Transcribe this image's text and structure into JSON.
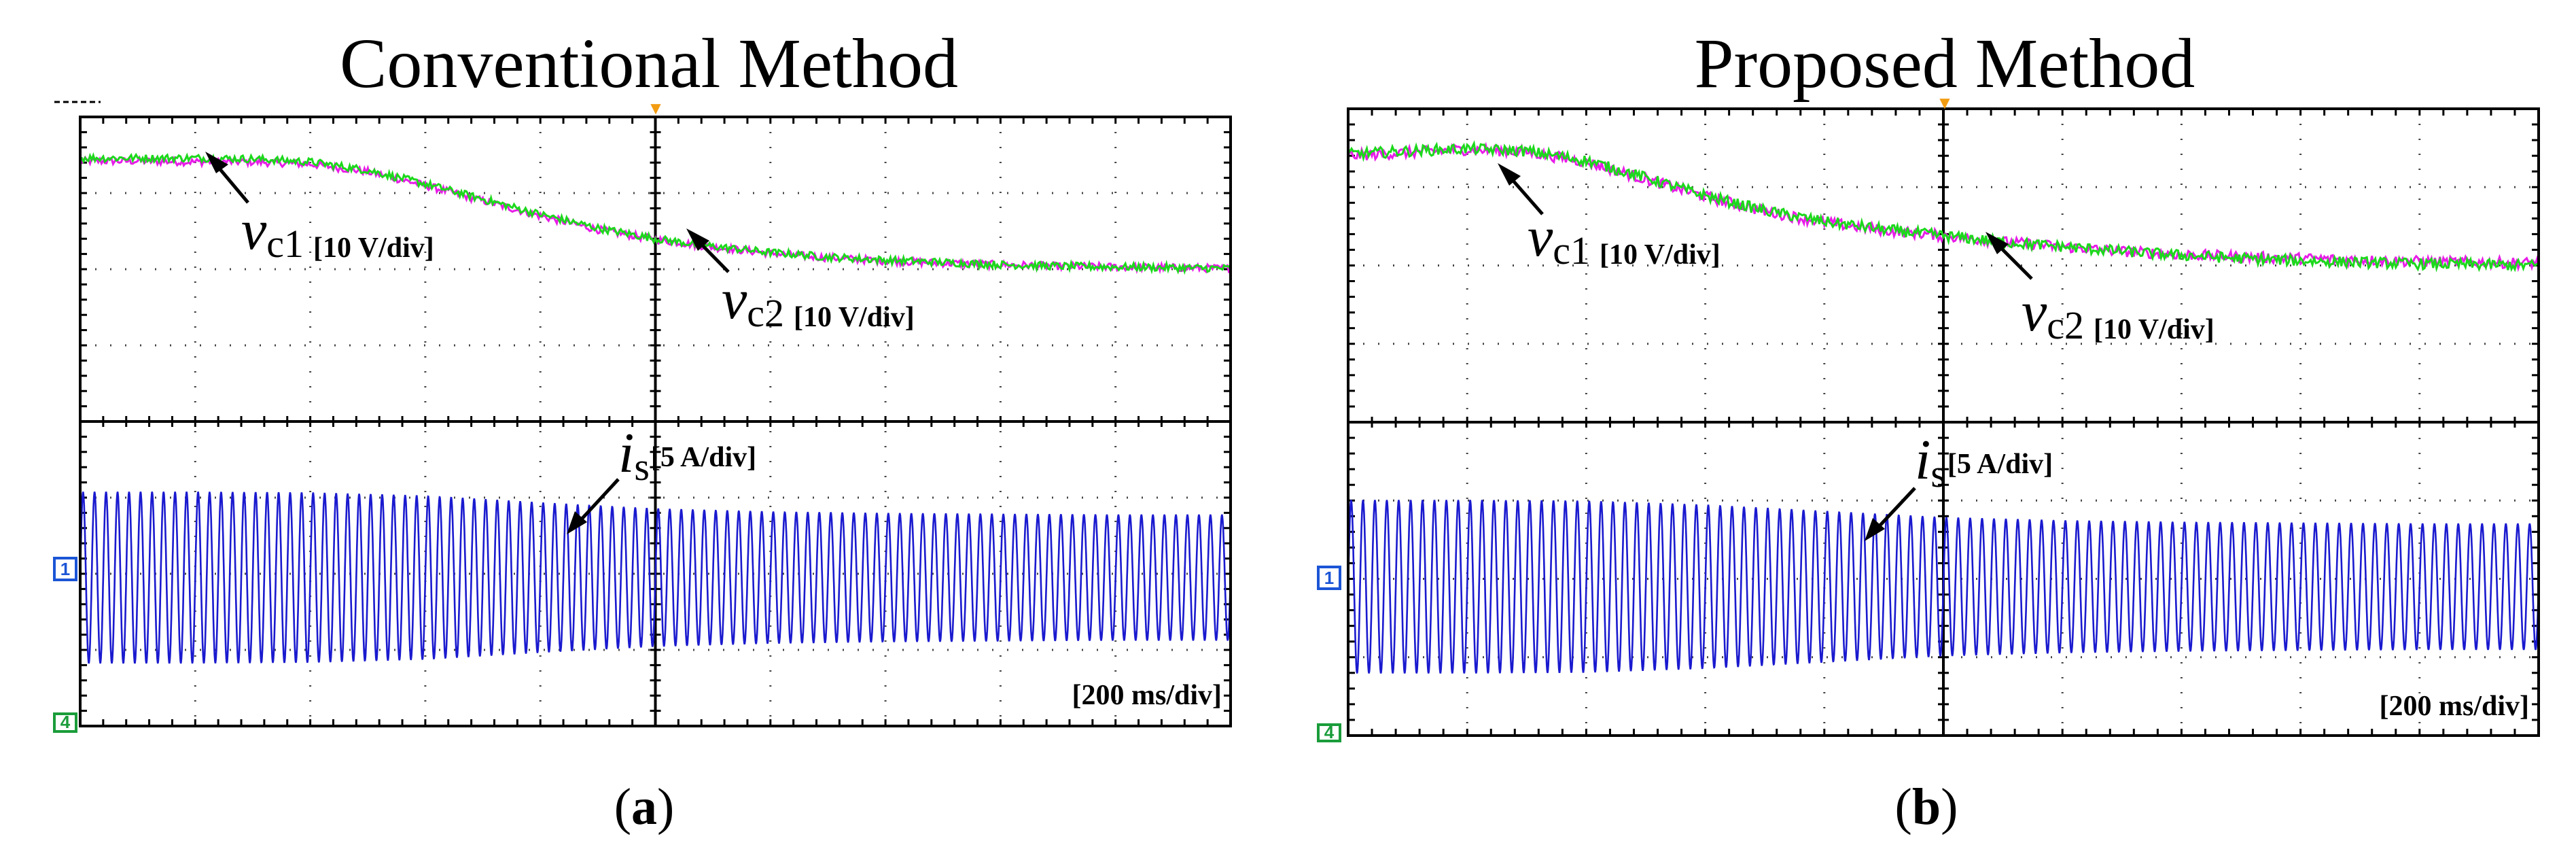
{
  "colors": {
    "vc1": "#e81ce8",
    "vc2": "#1cd81c",
    "is": "#1a1acf",
    "trigger": "#f29c12",
    "marker1": "#1b55d6",
    "marker4": "#1a9c3a"
  },
  "chart_data": [
    {
      "type": "line",
      "panel_label": "(a)",
      "panel_letter": "a",
      "title": "Conventional Method",
      "xlabel": "",
      "ylabel": "",
      "time_div_label": "[200 ms/div]",
      "x_divisions": 10,
      "y_divisions": 8,
      "grid": true,
      "trigger_marker": "▼",
      "channel_markers": [
        "1",
        "4"
      ],
      "ylim": [
        -4,
        4
      ],
      "series": [
        {
          "name": "vc1",
          "symbol": "v",
          "subscript": "c1",
          "unit": "[10 V/div]",
          "color_key": "vc1",
          "x": [
            0,
            0.5,
            1.0,
            1.5,
            2.0,
            2.5,
            3.0,
            3.5,
            4.0,
            4.5,
            5.0,
            5.5,
            6.0,
            6.5,
            7.0,
            7.5,
            8.0,
            8.5,
            9.0,
            9.5,
            10.0
          ],
          "values": [
            3.42,
            3.42,
            3.41,
            3.41,
            3.38,
            3.28,
            3.1,
            2.9,
            2.7,
            2.52,
            2.39,
            2.29,
            2.21,
            2.15,
            2.11,
            2.08,
            2.06,
            2.04,
            2.03,
            2.02,
            2.01
          ],
          "noise": 0.05
        },
        {
          "name": "vc2",
          "symbol": "v",
          "subscript": "c2",
          "unit": "[10 V/div]",
          "color_key": "vc2",
          "x": [
            0,
            0.5,
            1.0,
            1.5,
            2.0,
            2.5,
            3.0,
            3.5,
            4.0,
            4.5,
            5.0,
            5.5,
            6.0,
            6.5,
            7.0,
            7.5,
            8.0,
            8.5,
            9.0,
            9.5,
            10.0
          ],
          "values": [
            3.46,
            3.46,
            3.46,
            3.45,
            3.41,
            3.3,
            3.12,
            2.92,
            2.72,
            2.54,
            2.4,
            2.3,
            2.22,
            2.16,
            2.12,
            2.09,
            2.06,
            2.04,
            2.03,
            2.02,
            2.01
          ],
          "noise": 0.05
        },
        {
          "name": "is",
          "symbol": "i",
          "subscript": "s",
          "unit": "[5 A/div]",
          "color_key": "is",
          "offset": -2.05,
          "cycles": 100,
          "envelope_x": [
            0,
            1.0,
            2.0,
            3.0,
            4.0,
            5.0,
            6.0,
            7.0,
            8.0,
            9.0,
            10.0
          ],
          "envelope": [
            1.12,
            1.12,
            1.11,
            1.07,
            0.98,
            0.9,
            0.86,
            0.84,
            0.83,
            0.82,
            0.82
          ]
        }
      ]
    },
    {
      "type": "line",
      "panel_label": "(b)",
      "panel_letter": "b",
      "title": "Proposed Method",
      "xlabel": "",
      "ylabel": "",
      "time_div_label": "[200 ms/div]",
      "x_divisions": 10,
      "y_divisions": 8,
      "grid": true,
      "trigger_marker": "▼",
      "channel_markers": [
        "1",
        "4"
      ],
      "ylim": [
        -4,
        4
      ],
      "series": [
        {
          "name": "vc1",
          "symbol": "v",
          "subscript": "c1",
          "unit": "[10 V/div]",
          "color_key": "vc1",
          "x": [
            0,
            0.5,
            1.0,
            1.5,
            2.0,
            2.5,
            3.0,
            3.5,
            4.0,
            4.5,
            5.0,
            5.5,
            6.0,
            6.5,
            7.0,
            7.5,
            8.0,
            8.5,
            9.0,
            9.5,
            10.0
          ],
          "values": [
            3.4,
            3.44,
            3.48,
            3.45,
            3.32,
            3.1,
            2.88,
            2.69,
            2.55,
            2.45,
            2.38,
            2.3,
            2.24,
            2.18,
            2.14,
            2.11,
            2.09,
            2.07,
            2.05,
            2.04,
            2.03
          ],
          "noise": 0.07
        },
        {
          "name": "vc2",
          "symbol": "v",
          "subscript": "c2",
          "unit": "[10 V/div]",
          "color_key": "vc2",
          "x": [
            0,
            0.5,
            1.0,
            1.5,
            2.0,
            2.5,
            3.0,
            3.5,
            4.0,
            4.5,
            5.0,
            5.5,
            6.0,
            6.5,
            7.0,
            7.5,
            8.0,
            8.5,
            9.0,
            9.5,
            10.0
          ],
          "values": [
            3.42,
            3.46,
            3.49,
            3.46,
            3.34,
            3.12,
            2.89,
            2.7,
            2.56,
            2.46,
            2.38,
            2.3,
            2.24,
            2.18,
            2.13,
            2.09,
            2.06,
            2.04,
            2.02,
            2.01,
            2.0
          ],
          "noise": 0.07
        },
        {
          "name": "is",
          "symbol": "i",
          "subscript": "s",
          "unit": "[5 A/div]",
          "color_key": "is",
          "offset": -2.1,
          "cycles": 100,
          "envelope_x": [
            0,
            1.0,
            2.0,
            3.0,
            4.0,
            5.0,
            6.0,
            7.0,
            8.0,
            9.0,
            10.0
          ],
          "envelope": [
            1.1,
            1.1,
            1.09,
            1.04,
            0.96,
            0.88,
            0.84,
            0.82,
            0.81,
            0.8,
            0.8
          ]
        }
      ]
    }
  ]
}
